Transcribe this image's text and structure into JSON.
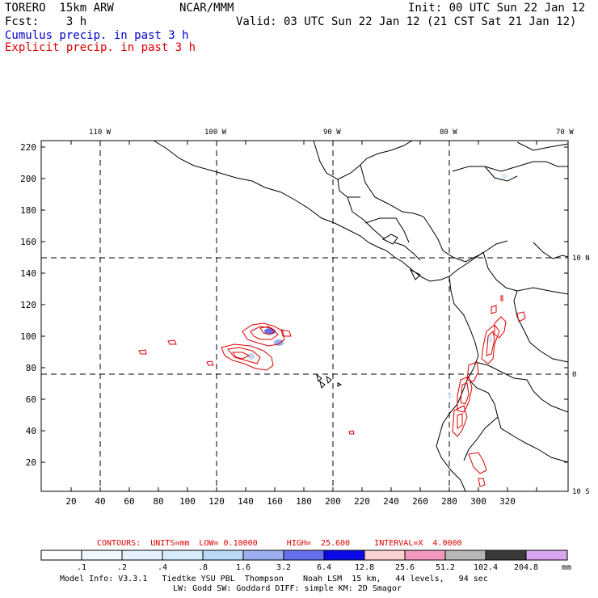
{
  "header": {
    "model": "TORERO  15km ARW",
    "center": "NCAR/MMM",
    "init": "Init: 00 UTC Sun 22 Jan 12",
    "fcst": "Fcst:    3 h",
    "valid": "Valid: 03 UTC Sun 22 Jan 12 (21 CST Sat 21 Jan 12)",
    "line1": "Cumulus precip. in past 3 h",
    "line2": "Explicit precip. in past 3 h",
    "line1_color": "#0000cc",
    "line2_color": "#dd0000"
  },
  "map": {
    "top_lon_labels": [
      "110 W",
      "100 W",
      "90 W",
      "80 W",
      "70 W"
    ],
    "right_lat_labels": [
      "10 N",
      "0",
      "10 S"
    ],
    "y_ticks": [
      "220",
      "200",
      "180",
      "160",
      "140",
      "120",
      "100",
      "80",
      "60",
      "40",
      "20"
    ],
    "x_ticks": [
      "20",
      "40",
      "60",
      "80",
      "100",
      "120",
      "140",
      "160",
      "180",
      "200",
      "220",
      "240",
      "260",
      "280",
      "300",
      "320"
    ]
  },
  "contour_info": {
    "text": "CONTOURS:  UNITS=mm  LOW= 0.10000      HIGH=  25.600     INTERVAL=X  4.0000",
    "color": "#dd0000"
  },
  "colorbar": {
    "labels": [
      ".1",
      ".2",
      ".4",
      ".8",
      "1.6",
      "3.2",
      "6.4",
      "12.8",
      "25.6",
      "51.2",
      "102.4",
      "204.8"
    ],
    "unit": "mm",
    "colors": [
      "#ffffff",
      "#f2f8ff",
      "#e6f3ff",
      "#d6ecfb",
      "#bcd9f5",
      "#9aaef0",
      "#6670ee",
      "#0a0ae8",
      "#fbd2d2",
      "#f598c0",
      "#b7b7b7",
      "#3a3a3a",
      "#d8a6f0"
    ]
  },
  "footer": {
    "line1": "Model Info: V3.3.1   Tiedtke YSU PBL  Thompson    Noah LSM  15 km,   44 levels,   94 sec",
    "line2": "LW: Godd SW: Goddard DIFF: simple KM: 2D Smagor"
  }
}
